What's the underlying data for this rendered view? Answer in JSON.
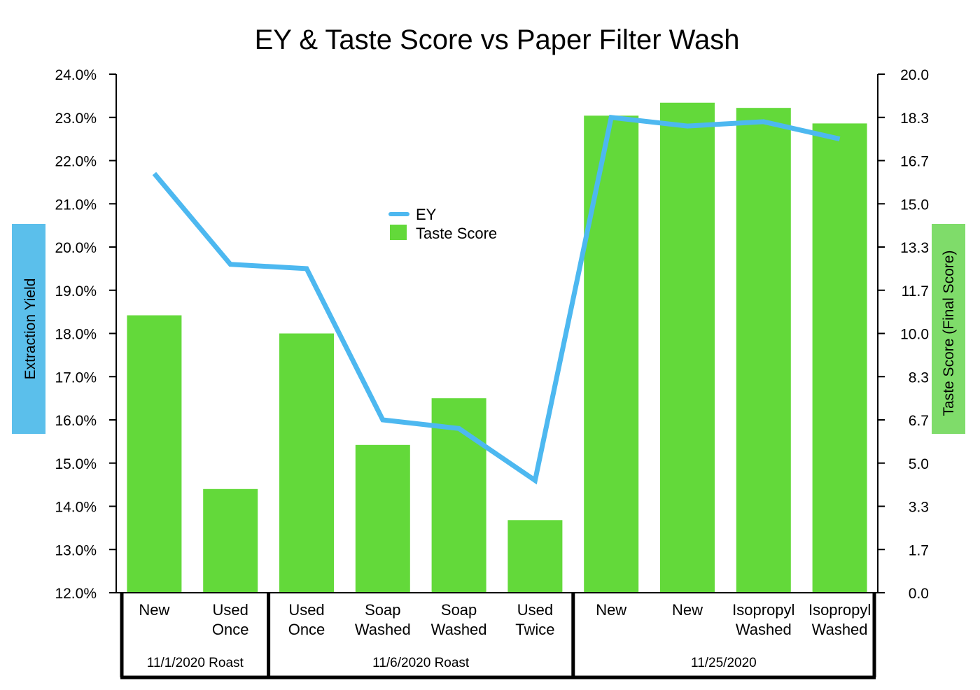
{
  "chart_data": {
    "type": "bar",
    "title": "EY & Taste Score vs Paper Filter Wash",
    "ylabel_left": "Extraction Yield",
    "ylabel_right": "Taste Score (Final Score)",
    "y_left_range": [
      12.0,
      24.0
    ],
    "y_right_range": [
      0.0,
      20.0
    ],
    "y_left_ticks": [
      "24.0%",
      "23.0%",
      "22.0%",
      "21.0%",
      "20.0%",
      "19.0%",
      "18.0%",
      "17.0%",
      "16.0%",
      "15.0%",
      "14.0%",
      "13.0%",
      "12.0%"
    ],
    "y_right_ticks": [
      "20.0",
      "18.3",
      "16.7",
      "15.0",
      "13.3",
      "11.7",
      "10.0",
      "8.3",
      "6.7",
      "5.0",
      "3.3",
      "1.7",
      "0.0"
    ],
    "categories": [
      [
        "New"
      ],
      [
        "Used",
        "Once"
      ],
      [
        "Used",
        "Once"
      ],
      [
        "Soap",
        "Washed"
      ],
      [
        "Soap",
        "Washed"
      ],
      [
        "Used",
        "Twice"
      ],
      [
        "New"
      ],
      [
        "New"
      ],
      [
        "Isopropyl",
        "Washed"
      ],
      [
        "Isopropyl",
        "Washed"
      ]
    ],
    "groups": [
      {
        "label": "11/1/2020 Roast",
        "count": 2
      },
      {
        "label": "11/6/2020 Roast",
        "count": 4
      },
      {
        "label": "11/25/2020",
        "count": 4
      }
    ],
    "series": [
      {
        "name": "Taste Score",
        "type": "bar",
        "axis": "right",
        "color": "#63d93a",
        "values": [
          10.7,
          4.0,
          10.0,
          5.7,
          7.5,
          2.8,
          18.4,
          18.9,
          18.7,
          18.1
        ]
      },
      {
        "name": "EY",
        "type": "line",
        "axis": "left",
        "color": "#4db8f0",
        "values": [
          21.7,
          19.6,
          19.5,
          16.0,
          15.8,
          14.6,
          23.0,
          22.8,
          22.9,
          22.5
        ]
      }
    ],
    "legend_position": "center",
    "grid": false
  }
}
